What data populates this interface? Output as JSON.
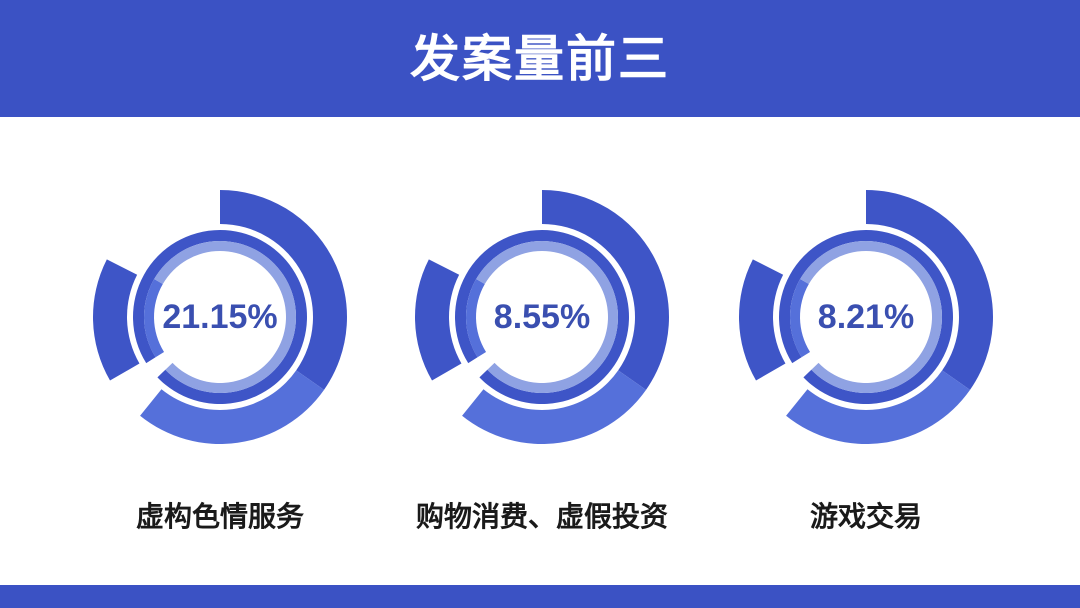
{
  "header": {
    "title": "发案量前三"
  },
  "colors": {
    "primary": "#3b52c4",
    "ring_dark": "#3e55c7",
    "ring_mid": "#5570da",
    "ring_light": "#8fa2e3",
    "percent_text": "#3a4fb0"
  },
  "chart_data": {
    "type": "table",
    "title": "发案量前三",
    "categories": [
      "虚构色情服务",
      "购物消费、虚假投资",
      "游戏交易"
    ],
    "values": [
      21.15,
      8.55,
      8.21
    ],
    "labels": [
      "21.15%",
      "8.55%",
      "8.21%"
    ]
  }
}
